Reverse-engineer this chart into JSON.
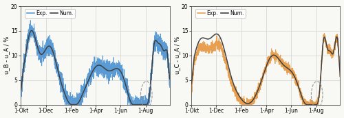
{
  "ylabel_left": "u_B - u_A / %",
  "ylabel_right": "u_C - u_A / %",
  "ylim": [
    0,
    20
  ],
  "yticks": [
    0,
    5,
    10,
    15,
    20
  ],
  "xtick_labels": [
    "1-Okt",
    "1-Dec",
    "1-Feb",
    "1-Apr",
    "1-Jun",
    "1-Aug"
  ],
  "xtick_days": [
    0,
    61,
    123,
    184,
    245,
    306
  ],
  "exp_color_left": "#5b9bd5",
  "exp_color_right": "#e8a050",
  "num_color": "#404040",
  "background_color": "#f8f8f4",
  "legend_exp": "Exp.",
  "legend_num": "Num.",
  "circle_color": "#999999",
  "n_days": 365,
  "exp_lw": 0.7,
  "num_lw": 1.1
}
